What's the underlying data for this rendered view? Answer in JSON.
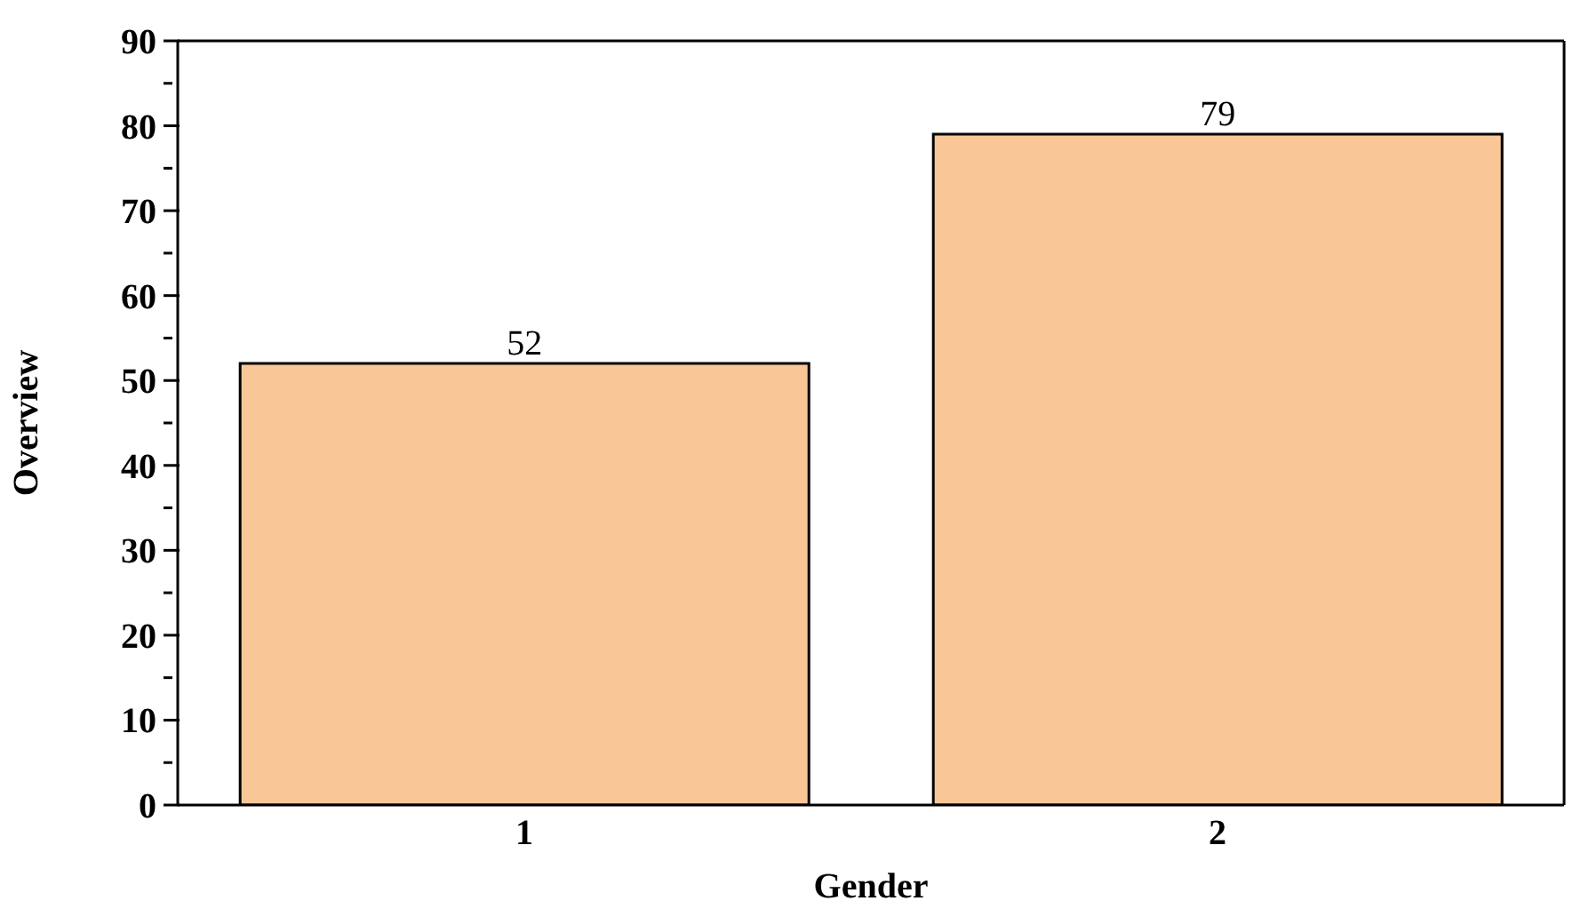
{
  "chart_data": {
    "type": "bar",
    "xlabel": "Gender",
    "ylabel": "Overview",
    "categories": [
      "1",
      "2"
    ],
    "series": [
      {
        "color": "#f9c797",
        "values": [
          52,
          79
        ]
      }
    ],
    "ylim": [
      0,
      90
    ],
    "yticks": [
      0,
      {
        "value": 5,
        "label": null
      },
      10,
      {
        "value": 15,
        "label": null
      },
      20,
      {
        "value": 25,
        "label": null
      },
      30,
      {
        "value": 35,
        "label": null
      },
      40,
      {
        "value": 45,
        "label": null
      },
      50,
      {
        "value": 55,
        "label": null
      },
      60,
      {
        "value": 65,
        "label": null
      },
      70,
      {
        "value": 75,
        "label": null
      },
      80,
      {
        "value": 85,
        "label": null
      },
      90
    ],
    "data_labels": true
  }
}
